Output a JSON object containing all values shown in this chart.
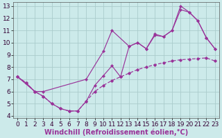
{
  "xlabel": "Windchill (Refroidissement éolien,°C)",
  "bg_color": "#cceaea",
  "grid_color": "#aacccc",
  "line_color": "#993399",
  "xlim": [
    -0.5,
    23.5
  ],
  "ylim": [
    3.8,
    13.3
  ],
  "xticks": [
    0,
    1,
    2,
    3,
    4,
    5,
    6,
    7,
    8,
    9,
    10,
    11,
    12,
    13,
    14,
    15,
    16,
    17,
    18,
    19,
    20,
    21,
    22,
    23
  ],
  "yticks": [
    4,
    5,
    6,
    7,
    8,
    9,
    10,
    11,
    12,
    13
  ],
  "line1_x": [
    0,
    1,
    2,
    3,
    4,
    5,
    6,
    7,
    8,
    9,
    10,
    11,
    12,
    13,
    14,
    15,
    16,
    17,
    18,
    19,
    20,
    21,
    22,
    23
  ],
  "line1_y": [
    7.2,
    6.7,
    6.0,
    5.6,
    5.0,
    4.6,
    4.4,
    4.4,
    5.2,
    6.5,
    7.3,
    8.1,
    7.2,
    9.7,
    10.0,
    9.5,
    10.6,
    10.5,
    11.0,
    12.7,
    12.5,
    11.8,
    10.4,
    9.5
  ],
  "line2_x": [
    0,
    2,
    3,
    8,
    10,
    11,
    13,
    14,
    15,
    16,
    17,
    18,
    19,
    20,
    21,
    22,
    23
  ],
  "line2_y": [
    7.2,
    6.0,
    6.0,
    7.0,
    9.3,
    11.0,
    9.7,
    10.0,
    9.5,
    10.7,
    10.5,
    11.0,
    13.0,
    12.5,
    11.8,
    10.4,
    9.5
  ],
  "line3_x": [
    0,
    1,
    2,
    3,
    4,
    5,
    6,
    7,
    8,
    9,
    10,
    11,
    12,
    13,
    14,
    15,
    16,
    17,
    18,
    19,
    20,
    21,
    22,
    23
  ],
  "line3_y": [
    7.2,
    6.7,
    6.0,
    5.6,
    5.0,
    4.6,
    4.4,
    4.4,
    5.2,
    6.0,
    6.5,
    6.9,
    7.2,
    7.5,
    7.8,
    8.0,
    8.2,
    8.35,
    8.5,
    8.6,
    8.65,
    8.7,
    8.75,
    8.5
  ],
  "tick_fontsize": 6.5,
  "label_fontsize": 7.0
}
